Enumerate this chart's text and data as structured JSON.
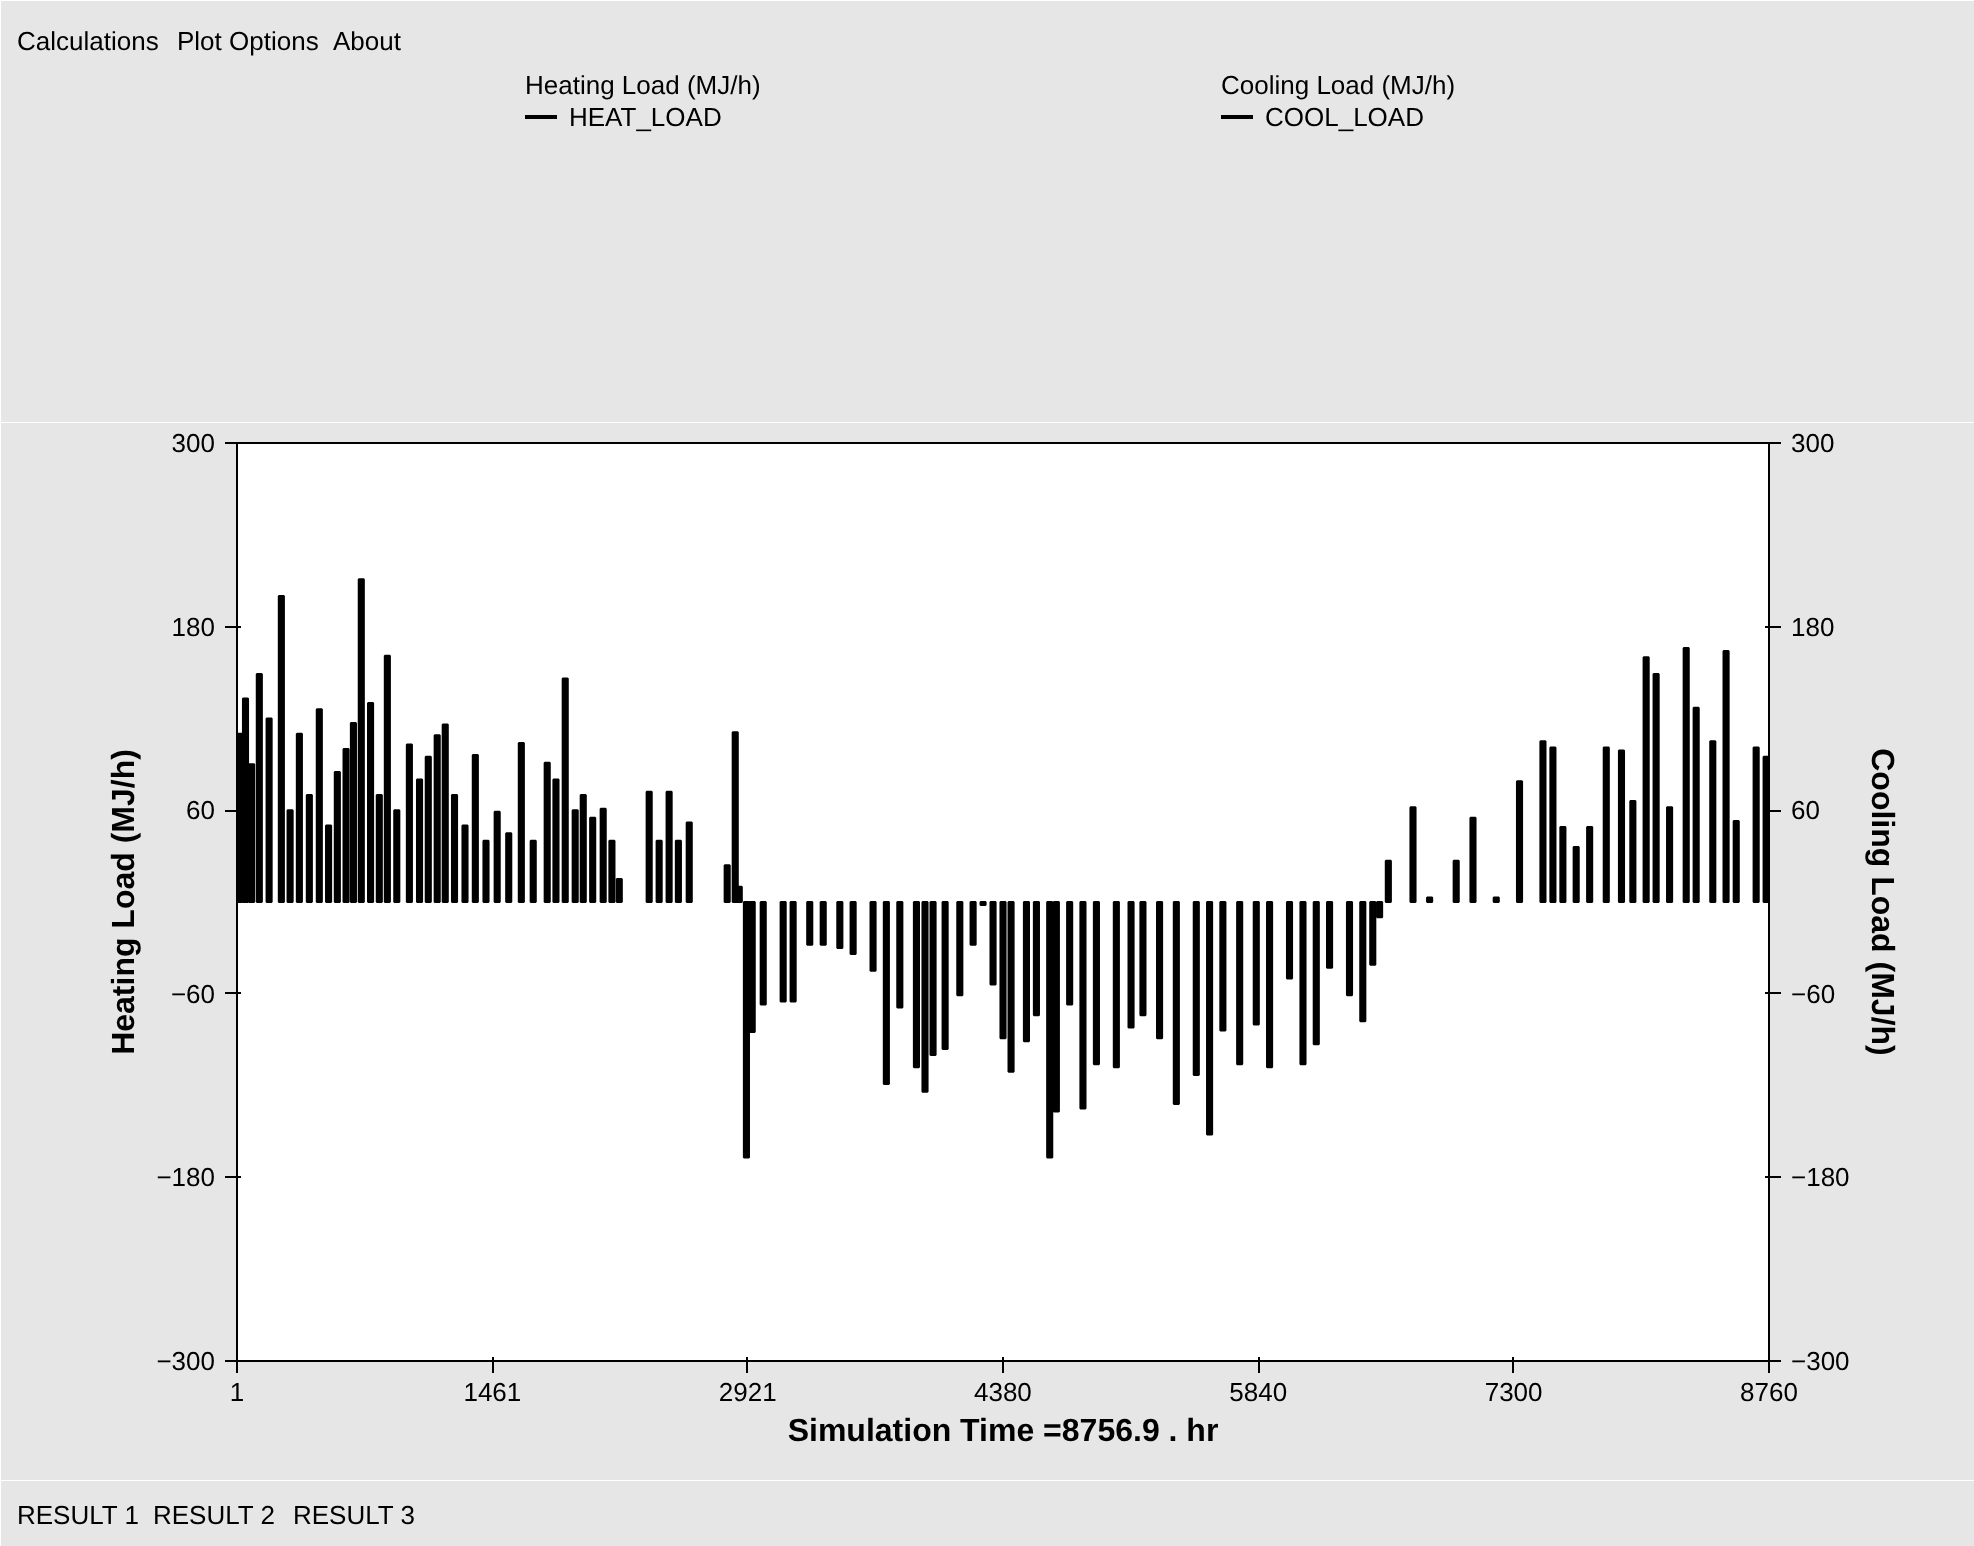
{
  "chart_data": {
    "type": "bar",
    "xlabel": "Simulation Time =8756.9 . hr",
    "ylabel": "Heating Load (MJ/h)",
    "y2label": "Cooling Load (MJ/h)",
    "annotations": [
      "Calculations",
      "Plot Options",
      "About",
      "Heating Load (MJ/h)",
      "Cooling Load (MJ/h)",
      "RESULT 1",
      "RESULT 2",
      "RESULT 3"
    ],
    "xlim": [
      1,
      8760
    ],
    "xticks": [
      1,
      1461,
      2921,
      4380,
      5840,
      7300,
      8760
    ],
    "ylim": [
      -300,
      300
    ],
    "yticks": [
      -300,
      -180,
      -60,
      60,
      180,
      300
    ],
    "y2lim": [
      -300,
      300
    ],
    "y2ticks": [
      -300,
      -180,
      -60,
      60,
      180,
      300
    ],
    "grid": false,
    "legend": "top",
    "series": [
      {
        "name": "HEAT_LOAD",
        "color": "#000000",
        "x": [
          1,
          35,
          70,
          114,
          170,
          240,
          290,
          343,
          400,
          457,
          510,
          560,
          610,
          652,
          697,
          750,
          800,
          846,
          900,
          972,
          1030,
          1080,
          1131,
          1177,
          1230,
          1290,
          1349,
          1410,
          1474,
          1540,
          1612,
          1680,
          1760,
          1810,
          1863,
          1920,
          1966,
          2020,
          2080,
          2130,
          2172,
          2343,
          2400,
          2457,
          2510,
          2572,
          2789,
          2835,
          2858,
          6569,
          6710,
          6805,
          6957,
          7053,
          7186,
          7319,
          7453,
          7510,
          7567,
          7643,
          7720,
          7815,
          7902,
          7967,
          8043,
          8100,
          8177,
          8272,
          8329,
          8424,
          8500,
          8558,
          8672,
          8729
        ],
        "values": [
          110,
          133,
          90,
          149,
          120,
          200,
          60,
          110,
          70,
          126,
          50,
          85,
          100,
          117,
          211,
          130,
          70,
          161,
          60,
          103,
          80,
          95,
          109,
          116,
          70,
          50,
          96,
          40,
          59,
          45,
          104,
          40,
          91,
          80,
          146,
          60,
          70,
          55,
          61,
          40,
          15,
          72,
          40,
          72,
          40,
          52,
          24,
          111,
          10,
          27,
          62,
          3,
          27,
          55,
          3,
          79,
          105,
          101,
          49,
          36,
          49,
          101,
          99,
          66,
          160,
          149,
          62,
          166,
          127,
          105,
          164,
          53,
          101,
          95
        ]
      },
      {
        "name": "COOL_LOAD",
        "color": "#000000",
        "axis": "y2",
        "x": [
          2899,
          2932,
          2995,
          3109,
          3166,
          3261,
          3338,
          3433,
          3509,
          3623,
          3699,
          3776,
          3871,
          3920,
          3966,
          4035,
          4119,
          4195,
          4252,
          4309,
          4366,
          4412,
          4500,
          4557,
          4633,
          4671,
          4747,
          4823,
          4900,
          5014,
          5098,
          5166,
          5261,
          5357,
          5471,
          5547,
          5623,
          5719,
          5814,
          5890,
          6004,
          6081,
          6157,
          6233,
          6347,
          6423,
          6480,
          6519
        ],
        "values": [
          -167,
          -85,
          -67,
          -65,
          -65,
          -28,
          -28,
          -30,
          -34,
          -45,
          -119,
          -69,
          -108,
          -124,
          -100,
          -96,
          -61,
          -28,
          -2,
          -54,
          -89,
          -111,
          -91,
          -74,
          -167,
          -137,
          -67,
          -135,
          -106,
          -108,
          -82,
          -74,
          -89,
          -132,
          -113,
          -152,
          -84,
          -106,
          -80,
          -108,
          -50,
          -106,
          -93,
          -43,
          -61,
          -78,
          -41,
          -10
        ]
      }
    ]
  }
}
